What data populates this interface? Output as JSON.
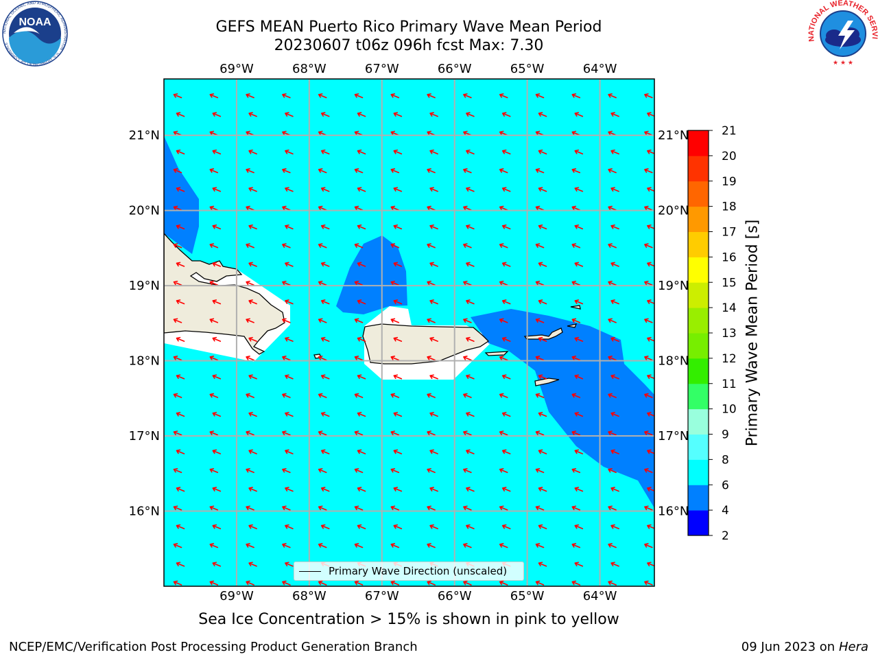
{
  "header": {
    "title_line1": "GEFS MEAN Puerto Rico Primary Wave Mean Period",
    "title_line2": "20230607 t06z 096h fcst   Max: 7.30"
  },
  "logos": {
    "noaa_text": "NOAA",
    "noaa_ring_text": "NATIONAL OCEANIC AND ATMOSPHERIC ADMINISTRATION · U.S. DEPARTMENT OF COMMERCE",
    "nws_ring_text": "NATIONAL WEATHER SERVICE"
  },
  "map": {
    "lon_range": [
      -70.0,
      -63.25
    ],
    "lat_range": [
      15.0,
      21.75
    ],
    "lon_ticks": [
      {
        "value": -69,
        "label": "69°W"
      },
      {
        "value": -68,
        "label": "68°W"
      },
      {
        "value": -67,
        "label": "67°W"
      },
      {
        "value": -66,
        "label": "66°W"
      },
      {
        "value": -65,
        "label": "65°W"
      },
      {
        "value": -64,
        "label": "64°W"
      }
    ],
    "lat_ticks": [
      {
        "value": 21,
        "label": "21°N"
      },
      {
        "value": 20,
        "label": "20°N"
      },
      {
        "value": 19,
        "label": "19°N"
      },
      {
        "value": 18,
        "label": "18°N"
      },
      {
        "value": 17,
        "label": "17°N"
      },
      {
        "value": 16,
        "label": "16°N"
      }
    ],
    "gridlines": true,
    "background_fill_color": "#00ffff",
    "arrow_color": "#ff0000",
    "coastline_color": "#000000",
    "land_color": "#efecdc",
    "low_period_color": "#0080ff",
    "wave_direction_label": "primary waves travelling WNW (from ESE)"
  },
  "legend": {
    "label": "Primary Wave Direction (unscaled)"
  },
  "colorbar": {
    "title": "Primary Wave Mean Period [s]",
    "levels": [
      2,
      4,
      6,
      8,
      9,
      10,
      11,
      12,
      13,
      14,
      15,
      16,
      17,
      18,
      19,
      20,
      21
    ],
    "colors": [
      "#0000ff",
      "#0080ff",
      "#00ffff",
      "#55ffff",
      "#99ffdd",
      "#33ff66",
      "#33ee00",
      "#77ee00",
      "#99ee00",
      "#ccee00",
      "#ffff00",
      "#ffcc00",
      "#ff9900",
      "#ff6600",
      "#ff3300",
      "#ff0000"
    ]
  },
  "ice_note": "Sea Ice Concentration > 15% is shown in pink to yellow",
  "footer": {
    "left": "NCEP/EMC/Verification Post Processing Product Generation Branch",
    "right_date": "09 Jun 2023 on",
    "right_host": "Hera"
  }
}
